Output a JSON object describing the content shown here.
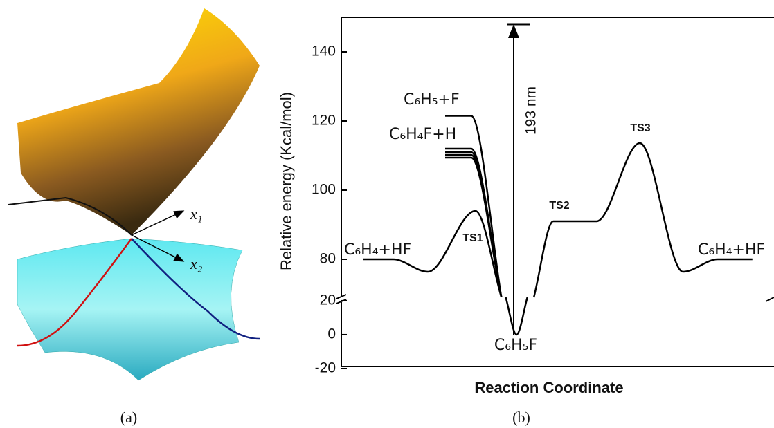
{
  "panel_a": {
    "axis_labels": [
      "x₁",
      "x₂"
    ]
  },
  "captions": [
    "(a)",
    "(b)"
  ],
  "chart_data": {
    "type": "line",
    "ylabel": "Relative energy (Kcal/mol)",
    "xlabel": "Reaction Coordinate",
    "xlim": [
      0,
      100
    ],
    "ylim": [
      -20,
      150
    ],
    "ybreak": [
      22,
      69
    ],
    "yticks": [
      -20,
      0,
      20,
      80,
      100,
      120,
      140
    ],
    "color": "#000000",
    "series": [
      {
        "x": [
          5,
          12,
          20,
          31,
          37,
          37.5,
          38,
          40.5,
          43,
          43.5,
          44.5,
          49,
          59,
          69,
          79,
          87,
          95
        ],
        "values": [
          80,
          80,
          76.4,
          94,
          69,
          null,
          22,
          0,
          22,
          null,
          69,
          91,
          91,
          113.6,
          76.4,
          80,
          80
        ]
      },
      {
        "x": [
          24,
          30,
          37
        ],
        "values": [
          121.5,
          121.5,
          69
        ]
      },
      {
        "x": [
          24,
          30,
          37
        ],
        "values": [
          112,
          112,
          69
        ]
      },
      {
        "x": [
          24,
          30,
          37
        ],
        "values": [
          111,
          111,
          69
        ]
      },
      {
        "x": [
          24,
          30,
          37
        ],
        "values": [
          110.2,
          110.2,
          69
        ]
      },
      {
        "x": [
          24,
          30,
          37
        ],
        "values": [
          109.4,
          109.4,
          69
        ]
      }
    ],
    "annotations": [
      "C₆H₄+HF",
      "TS1",
      "TS2",
      "TS3",
      "C₆H₄+HF",
      "C₆H₅+F",
      "C₆H₄F+H",
      "C₆H₅F"
    ],
    "photon": {
      "label": "193 nm",
      "value": 148
    }
  }
}
